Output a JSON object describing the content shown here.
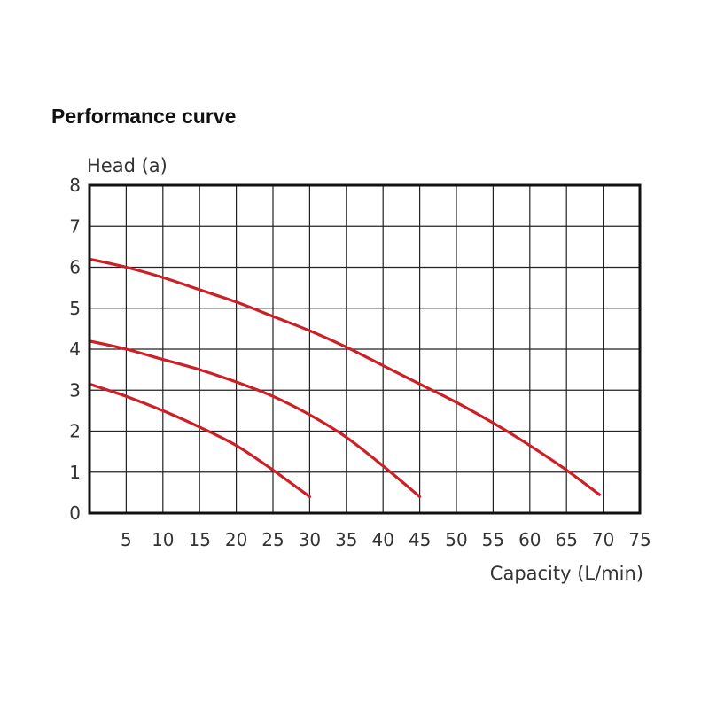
{
  "chart_data": {
    "type": "line",
    "title": "Performance curve",
    "xlabel": "Capacity (L/min)",
    "ylabel": "Head (a)",
    "xlim": [
      0,
      75
    ],
    "ylim": [
      0,
      8
    ],
    "x_ticks": [
      "5",
      "10",
      "15",
      "20",
      "25",
      "30",
      "35",
      "40",
      "45",
      "50",
      "55",
      "60",
      "65",
      "70",
      "75"
    ],
    "y_ticks": [
      "0",
      "1",
      "2",
      "3",
      "4",
      "5",
      "6",
      "7",
      "8"
    ],
    "grid": true,
    "line_color": "#cc1f26",
    "series": [
      {
        "x": [
          0,
          5,
          10,
          15,
          20,
          25,
          30
        ],
        "y": [
          3.15,
          2.85,
          2.5,
          2.1,
          1.65,
          1.05,
          0.4
        ]
      },
      {
        "x": [
          0,
          5,
          10,
          15,
          20,
          25,
          30,
          35,
          40,
          45
        ],
        "y": [
          4.2,
          4.0,
          3.75,
          3.5,
          3.2,
          2.85,
          2.4,
          1.85,
          1.15,
          0.4
        ]
      },
      {
        "x": [
          0,
          5,
          10,
          15,
          20,
          25,
          30,
          35,
          40,
          45,
          50,
          55,
          60,
          65,
          69.5
        ],
        "y": [
          6.2,
          6.0,
          5.75,
          5.45,
          5.15,
          4.8,
          4.45,
          4.05,
          3.6,
          3.15,
          2.7,
          2.2,
          1.65,
          1.05,
          0.45
        ]
      }
    ]
  }
}
